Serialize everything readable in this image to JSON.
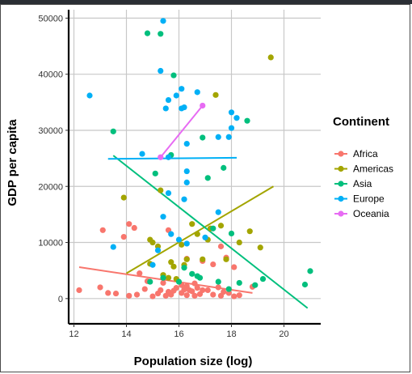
{
  "chart_data": {
    "type": "scatter",
    "title": "",
    "xlabel": "Population size (log)",
    "ylabel": "GDP per capita",
    "xlim": [
      11.8,
      21.4
    ],
    "ylim": [
      -4500,
      51500
    ],
    "x_ticks": [
      12,
      14,
      16,
      18,
      20
    ],
    "y_ticks": [
      0,
      10000,
      20000,
      30000,
      40000,
      50000
    ],
    "grid": true,
    "legend": {
      "title": "Continent",
      "position": "right"
    },
    "series": [
      {
        "name": "Africa",
        "color": "#F8766D",
        "points": [
          [
            12.2,
            1500
          ],
          [
            13,
            2000
          ],
          [
            13.3,
            1000
          ],
          [
            13.6,
            900
          ],
          [
            14.1,
            500
          ],
          [
            14.4,
            700
          ],
          [
            14.7,
            1700
          ],
          [
            15,
            400
          ],
          [
            15.2,
            900
          ],
          [
            15.5,
            500
          ],
          [
            15.7,
            700
          ],
          [
            15.9,
            1900
          ],
          [
            16.1,
            1000
          ],
          [
            16.3,
            600
          ],
          [
            16.4,
            1500
          ],
          [
            16.6,
            500
          ],
          [
            16.8,
            800
          ],
          [
            17.1,
            1500
          ],
          [
            17.3,
            700
          ],
          [
            17.6,
            500
          ],
          [
            17.9,
            1000
          ],
          [
            18.3,
            600
          ],
          [
            15.3,
            1500
          ],
          [
            15.6,
            1200
          ],
          [
            16.2,
            1600
          ],
          [
            16.5,
            1300
          ],
          [
            16.9,
            1500
          ],
          [
            17.5,
            2000
          ],
          [
            16.7,
            1900
          ],
          [
            15.8,
            1400
          ],
          [
            16.3,
            2200
          ],
          [
            16.6,
            2700
          ],
          [
            17.7,
            1200
          ],
          [
            18.1,
            400
          ],
          [
            13.1,
            12200
          ],
          [
            14.1,
            13300
          ],
          [
            14.3,
            12600
          ],
          [
            13.9,
            11000
          ],
          [
            14.5,
            4500
          ],
          [
            15.6,
            12200
          ],
          [
            16.3,
            7100
          ],
          [
            16.9,
            6700
          ],
          [
            17.3,
            6100
          ],
          [
            17.6,
            9300
          ],
          [
            17.8,
            7300
          ],
          [
            18.1,
            5600
          ],
          [
            18.8,
            2100
          ],
          [
            16.1,
            2400
          ],
          [
            15.4,
            2800
          ],
          [
            14.8,
            3100
          ]
        ],
        "trend": [
          [
            12.2,
            5600
          ],
          [
            18.8,
            1000
          ]
        ]
      },
      {
        "name": "Americas",
        "color": "#A3A500",
        "points": [
          [
            13.9,
            18000
          ],
          [
            14.9,
            10500
          ],
          [
            15,
            10000
          ],
          [
            15.2,
            9300
          ],
          [
            15.3,
            19300
          ],
          [
            15.4,
            4200
          ],
          [
            15.6,
            3700
          ],
          [
            15.8,
            5700
          ],
          [
            15.9,
            3500
          ],
          [
            16.1,
            9600
          ],
          [
            16.3,
            7000
          ],
          [
            16.5,
            13300
          ],
          [
            16.7,
            11500
          ],
          [
            16.9,
            7000
          ],
          [
            17.1,
            10500
          ],
          [
            17.2,
            12500
          ],
          [
            17.4,
            36300
          ],
          [
            17.8,
            7000
          ],
          [
            18.3,
            10000
          ],
          [
            18.7,
            12000
          ],
          [
            19.1,
            9100
          ],
          [
            19.5,
            43000
          ],
          [
            14.9,
            6200
          ],
          [
            16.2,
            6000
          ],
          [
            17.6,
            13000
          ],
          [
            15.7,
            6500
          ]
        ],
        "trend": [
          [
            14,
            4500
          ],
          [
            19.6,
            20000
          ]
        ]
      },
      {
        "name": "Asia",
        "color": "#00BF7D",
        "points": [
          [
            13.5,
            29800
          ],
          [
            14.8,
            47300
          ],
          [
            15.3,
            47200
          ],
          [
            15.8,
            39800
          ],
          [
            15.7,
            25600
          ],
          [
            15.1,
            22300
          ],
          [
            14.9,
            3000
          ],
          [
            15.4,
            3700
          ],
          [
            16.5,
            4400
          ],
          [
            16.9,
            28700
          ],
          [
            17.1,
            21500
          ],
          [
            17.3,
            12500
          ],
          [
            17.7,
            23300
          ],
          [
            18,
            11600
          ],
          [
            18.6,
            31700
          ],
          [
            16.2,
            5500
          ],
          [
            16.8,
            3700
          ],
          [
            17.5,
            3000
          ],
          [
            18.3,
            2800
          ],
          [
            18.9,
            2400
          ],
          [
            19.2,
            3500
          ],
          [
            20.8,
            2500
          ],
          [
            21,
            4900
          ],
          [
            16.7,
            4000
          ],
          [
            17.9,
            1700
          ],
          [
            16,
            3000
          ]
        ],
        "trend": [
          [
            13.5,
            25500
          ],
          [
            20.9,
            -1700
          ]
        ]
      },
      {
        "name": "Europe",
        "color": "#00B0F6",
        "points": [
          [
            12.6,
            36200
          ],
          [
            13.5,
            9200
          ],
          [
            14.6,
            25800
          ],
          [
            15.3,
            40600
          ],
          [
            15.4,
            49500
          ],
          [
            15.5,
            33900
          ],
          [
            15.6,
            35400
          ],
          [
            15.9,
            36200
          ],
          [
            16.1,
            37400
          ],
          [
            16.2,
            34100
          ],
          [
            16.3,
            27600
          ],
          [
            16.1,
            33900
          ],
          [
            16.3,
            22700
          ],
          [
            16.3,
            20700
          ],
          [
            16.2,
            17700
          ],
          [
            16.7,
            36800
          ],
          [
            17.5,
            28800
          ],
          [
            17.9,
            28800
          ],
          [
            18,
            33200
          ],
          [
            18,
            30400
          ],
          [
            18.2,
            32200
          ],
          [
            15.4,
            14600
          ],
          [
            15.6,
            18800
          ],
          [
            15,
            6000
          ],
          [
            15.2,
            8600
          ],
          [
            15.7,
            11500
          ],
          [
            16.3,
            9800
          ],
          [
            17,
            10900
          ],
          [
            16,
            10500
          ],
          [
            17.5,
            15400
          ],
          [
            15.6,
            25200
          ]
        ],
        "trend": [
          [
            13.3,
            24900
          ],
          [
            18.2,
            25100
          ]
        ]
      },
      {
        "name": "Oceania",
        "color": "#E76BF3",
        "points": [
          [
            15.3,
            25200
          ],
          [
            16.9,
            34400
          ]
        ],
        "trend": [
          [
            15.3,
            25200
          ],
          [
            16.9,
            34400
          ]
        ]
      }
    ]
  }
}
